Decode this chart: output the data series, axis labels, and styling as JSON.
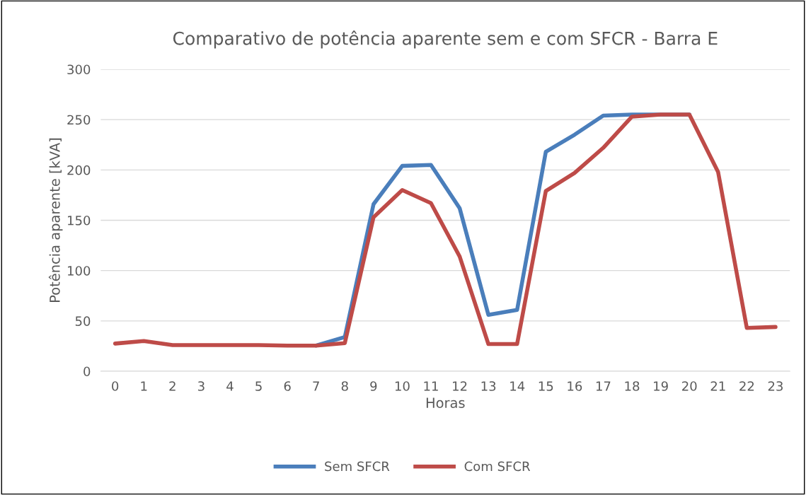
{
  "chart_data": {
    "type": "line",
    "title": "Comparativo de potência aparente sem e com SFCR - Barra E",
    "xlabel": "Horas",
    "ylabel": "Potência aparente [kVA]",
    "categories": [
      "0",
      "1",
      "2",
      "3",
      "4",
      "5",
      "6",
      "7",
      "8",
      "9",
      "10",
      "11",
      "12",
      "13",
      "14",
      "15",
      "16",
      "17",
      "18",
      "19",
      "20",
      "21",
      "22",
      "23"
    ],
    "series": [
      {
        "name": "Sem SFCR",
        "color": "#4a7ebb",
        "values": [
          null,
          null,
          null,
          null,
          null,
          null,
          null,
          25.5,
          34,
          166,
          204,
          205,
          162,
          56,
          61,
          218,
          235,
          254,
          255,
          255,
          255,
          null,
          null,
          null
        ]
      },
      {
        "name": "Com SFCR",
        "color": "#be4b48",
        "values": [
          27.5,
          30,
          26,
          26,
          26,
          26,
          25.5,
          25.5,
          28,
          153,
          180,
          167,
          114,
          27,
          27,
          179,
          197,
          222,
          253,
          255,
          255,
          198,
          43,
          44
        ]
      }
    ],
    "ylim": [
      0,
      300
    ],
    "yticks": [
      0,
      50,
      100,
      150,
      200,
      250,
      300
    ],
    "grid": "y",
    "legend": "bottom",
    "marker": "none",
    "line_style": "solid"
  }
}
